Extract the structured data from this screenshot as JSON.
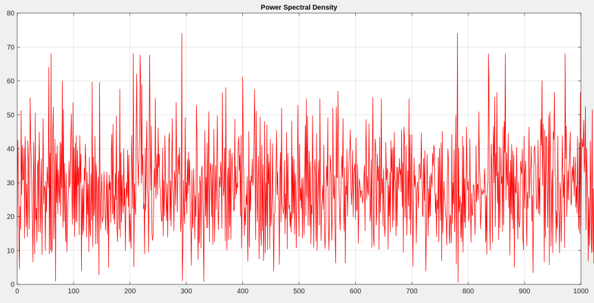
{
  "figure": {
    "background": "#f0f0f0"
  },
  "chart_data": {
    "type": "line",
    "title": "Power Spectral Density",
    "xlabel": "",
    "ylabel": "",
    "xlim": [
      0,
      1000
    ],
    "ylim": [
      0,
      80
    ],
    "grid": true,
    "x_ticks": [
      0,
      100,
      200,
      300,
      400,
      500,
      600,
      700,
      800,
      900,
      1000
    ],
    "y_ticks": [
      0,
      10,
      20,
      30,
      40,
      50,
      60,
      70,
      80
    ],
    "series": [
      {
        "color": "#ff0000",
        "x_start": 0,
        "x_step": 1,
        "values": [
          17.0,
          42.6,
          36.2,
          15.4,
          4.6,
          23.1,
          16.2,
          51.3,
          26.4,
          40.9,
          30.7,
          31.1,
          40.2,
          13.6,
          43.7,
          34.7,
          17.1,
          29.6,
          14.0,
          42.3,
          36.6,
          16.3,
          26.4,
          55.0,
          41.5,
          36.7,
          28.1,
          18.5,
          6.6,
          41.9,
          29.8,
          9.0,
          50.6,
          19.0,
          22.5,
          12.4,
          34.9,
          36.6,
          15.5,
          44.9,
          35.0,
          15.3,
          25.2,
          37.0,
          8.8,
          30.7,
          48.9,
          23.7,
          29.0,
          28.3,
          10.0,
          30.5,
          21.4,
          34.6,
          31.4,
          28.6,
          64.0,
          9.0,
          38.7,
          10.2,
          68.1,
          9.4,
          10.9,
          45.1,
          52.3,
          13.4,
          22.3,
          42.8,
          1.0,
          38.5,
          24.1,
          40.9,
          20.8,
          33.8,
          28.6,
          24.0,
          42.0,
          20.3,
          41.6,
          28.4,
          60.0,
          16.8,
          51.6,
          18.5,
          35.7,
          24.5,
          12.6,
          32.7,
          9.7,
          17.1,
          23.8,
          27.9,
          36.4,
          28.5,
          30.2,
          42.9,
          50.2,
          26.8,
          17.7,
          53.6,
          19.4,
          40.3,
          14.0,
          41.7,
          18.4,
          43.9,
          18.6,
          39.6,
          29.2,
          34.5,
          14.6,
          43.9,
          30.1,
          38.4,
          4.0,
          28.2,
          14.7,
          29.3,
          15.9,
          34.4,
          30.5,
          41.4,
          34.8,
          13.9,
          33.1,
          20.6,
          29.5,
          9.6,
          37.5,
          16.5,
          14.3,
          32.6,
          18.9,
          59.7,
          11.1,
          37.5,
          20.2,
          22.8,
          43.6,
          11.9,
          35.4,
          32.0,
          12.0,
          28.9,
          31.7,
          2.8,
          59.5,
          27.6,
          16.2,
          26.5,
          32.6,
          18.3,
          19.3,
          19.9,
          33.2,
          25.7,
          21.4,
          16.0,
          27.0,
          33.2,
          14.8,
          29.7,
          5.0,
          32.3,
          27.9,
          30.2,
          18.3,
          39.0,
          44.3,
          20.8,
          47.2,
          19.2,
          26.3,
          17.8,
          32.7,
          25.0,
          49.7,
          16.3,
          12.6,
          30.4,
          33.4,
          16.3,
          57.6,
          13.9,
          38.8,
          18.4,
          32.2,
          24.2,
          20.9,
          40.1,
          23.2,
          28.4,
          9.9,
          24.6,
          30.0,
          25.6,
          39.6,
          22.9,
          38.1,
          12.5,
          20.8,
          14.2,
          10.6,
          43.9,
          33.6,
          22.3,
          68.1,
          5.2,
          29.7,
          22.8,
          20.6,
          45.1,
          62.0,
          36.9,
          35.4,
          29.0,
          37.7,
          47.6,
          67.6,
          59.0,
          29.9,
          58.8,
          32.2,
          38.3,
          22.3,
          23.6,
          9.0,
          40.2,
          21.8,
          38.6,
          48.2,
          28.2,
          26.0,
          9.6,
          39.3,
          67.6,
          40.2,
          27.7,
          46.6,
          15.2,
          13.0,
          14.6,
          22.7,
          34.1,
          28.7,
          54.9,
          25.3,
          31.7,
          38.3,
          26.3,
          46.2,
          34.6,
          38.4,
          28.7,
          28.2,
          21.6,
          18.6,
          18.9,
          40.3,
          14.3,
          30.7,
          20.1,
          43.9,
          33.7,
          25.6,
          18.8,
          29.7,
          13.9,
          32.4,
          42.4,
          44.7,
          18.9,
          30.6,
          17.2,
          33.1,
          48.9,
          28.2,
          26.9,
          15.8,
          33.5,
          31.0,
          23.3,
          53.7,
          33.9,
          21.4,
          36.2,
          38.3,
          32.5,
          40.4,
          27.6,
          15.6,
          20.2,
          74.0,
          1.0,
          10.8,
          30.7,
          21.0,
          17.9,
          49.2,
          24.5,
          30.0,
          20.8,
          36.8,
          26.8,
          39.1,
          29.3,
          36.5,
          17.2,
          15.7,
          5.6,
          33.6,
          16.6,
          18.5,
          34.1,
          26.0,
          13.4,
          26.1,
          20.0,
          52.8,
          42.2,
          17.3,
          7.4,
          26.9,
          12.2,
          32.0,
          29.5,
          10.7,
          33.5,
          34.9,
          29.5,
          16.0,
          0.8,
          28.8,
          45.4,
          20.1,
          31.6,
          16.7,
          41.7,
          16.7,
          36.4,
          50.9,
          12.6,
          32.8,
          35.8,
          33.2,
          20.0,
          35.3,
          11.8,
          27.8,
          45.8,
          12.6,
          23.6,
          35.0,
          22.1,
          37.5,
          49.8,
          23.4,
          16.1,
          25.2,
          31.7,
          28.7,
          36.1,
          32.1,
          16.5,
          56.5,
          31.0,
          26.1,
          29.2,
          40.2,
          12.8,
          58.0,
          25.8,
          10.2,
          30.8,
          34.4,
          13.1,
          39.6,
          17.1,
          40.0,
          13.3,
          33.8,
          38.6,
          32.5,
          28.0,
          22.5,
          21.5,
          48.8,
          25.2,
          34.8,
          26.6,
          29.8,
          28.6,
          41.3,
          43.5,
          33.6,
          38.1,
          20.1,
          43.9,
          10.6,
          22.6,
          61.2,
          39.5,
          31.8,
          14.4,
          22.7,
          17.5,
          26.4,
          23.5,
          31.8,
          6.8,
          16.0,
          45.1,
          11.0,
          30.6,
          21.7,
          32.1,
          30.2,
          37.0,
          29.1,
          30.8,
          42.6,
          57.5,
          32.6,
          13.2,
          51.1,
          26.3,
          18.5,
          30.7,
          37.8,
          7.5,
          21.7,
          49.4,
          15.0,
          11.4,
          41.0,
          15.9,
          35.3,
          7.0,
          16.6,
          48.0,
          9.2,
          29.9,
          17.2,
          47.0,
          10.2,
          38.4,
          29.6,
          36.0,
          10.5,
          42.9,
          17.2,
          20.3,
          26.4,
          41.5,
          21.5,
          4.0,
          20.6,
          20.9,
          25.3,
          33.9,
          45.4,
          26.4,
          33.3,
          26.2,
          24.6,
          5.9,
          32.6,
          38.9,
          18.4,
          52.0,
          23.2,
          22.9,
          20.7,
          23.9,
          36.5,
          14.9,
          26.8,
          19.5,
          44.9,
          10.5,
          38.6,
          27.5,
          22.3,
          23.4,
          16.9,
          21.3,
          15.4,
          48.2,
          19.5,
          37.7,
          21.0,
          36.9,
          14.8,
          32.7,
          29.7,
          10.8,
          26.7,
          31.1,
          52.8,
          23.6,
          14.2,
          41.4,
          24.7,
          28.5,
          22.4,
          31.3,
          13.6,
          31.5,
          24.0,
          14.6,
          32.6,
          46.9,
          20.2,
          54.7,
          25.9,
          49.6,
          17.3,
          29.4,
          39.4,
          17.2,
          36.0,
          11.9,
          23.4,
          20.7,
          49.8,
          29.5,
          10.9,
          30.9,
          36.9,
          32.5,
          12.8,
          44.5,
          10.0,
          22.3,
          31.0,
          36.5,
          17.5,
          54.8,
          28.9,
          12.9,
          23.5,
          24.4,
          29.2,
          22.1,
          41.0,
          17.7,
          10.6,
          14.3,
          28.6,
          34.9,
          29.0,
          49.1,
          17.4,
          10.1,
          19.5,
          38.1,
          36.1,
          32.1,
          13.0,
          19.5,
          52.0,
          26.9,
          25.3,
          32.1,
          14.3,
          6.3,
          52.3,
          31.7,
          31.4,
          57.0,
          37.8,
          27.8,
          20.5,
          16.0,
          27.2,
          32.1,
          37.9,
          31.5,
          48.9,
          23.0,
          15.7,
          34.4,
          6.3,
          29.0,
          26.4,
          39.9,
          20.1,
          28.8,
          32.4,
          38.6,
          40.0,
          45.6,
          28.0,
          23.5,
          31.1,
          39.5,
          19.9,
          32.8,
          33.9,
          35.6,
          19.2,
          43.2,
          21.7,
          22.4,
          35.3,
          12.1,
          22.1,
          31.1,
          29.2,
          25.5,
          27.7,
          27.5,
          25.2,
          23.9,
          28.4,
          31.5,
          35.1,
          15.8,
          37.4,
          48.6,
          25.1,
          31.9,
          27.6,
          26.3,
          47.4,
          31.4,
          18.6,
          21.9,
          36.8,
          10.9,
          38.8,
          55.1,
          14.0,
          11.4,
          29.1,
          42.9,
          40.8,
          17.4,
          21.2,
          38.4,
          30.6,
          34.9,
          10.3,
          43.4,
          21.2,
          28.0,
          54.8,
          26.9,
          31.2,
          17.1,
          34.1,
          22.9,
          14.1,
          17.7,
          41.9,
          30.7,
          33.1,
          34.2,
          10.4,
          29.2,
          20.2,
          33.0,
          15.5,
          42.4,
          33.1,
          39.9,
          16.9,
          40.5,
          18.9,
          44.9,
          31.1,
          30.1,
          14.3,
          34.6,
          17.1,
          34.6,
          31.6,
          28.0,
          37.2,
          32.4,
          33.9,
          27.3,
          45.5,
          22.8,
          35.9,
          9.4,
          46.5,
          43.6,
          19.7,
          26.6,
          40.9,
          14.5,
          22.2,
          33.5,
          23.2,
          54.7,
          19.1,
          44.2,
          14.7,
          28.2,
          44.1,
          25.3,
          5.4,
          25.4,
          37.3,
          28.9,
          32.1,
          27.3,
          12.2,
          27.2,
          30.2,
          26.2,
          22.5,
          35.2,
          35.6,
          31.0,
          32.2,
          44.7,
          31.5,
          20.8,
          20.0,
          37.1,
          24.7,
          39.5,
          21.1,
          3.9,
          20.8,
          38.4,
          30.4,
          14.3,
          28.2,
          19.7,
          31.9,
          20.2,
          32.8,
          31.1,
          28.7,
          38.7,
          35.0,
          41.0,
          40.2,
          27.3,
          21.1,
          26.8,
          14.1,
          25.0,
          22.3,
          37.5,
          12.5,
          40.2,
          29.7,
          18.9,
          41.7,
          6.9,
          45.1,
          15.2,
          23.3,
          30.3,
          25.3,
          23.9,
          21.2,
          18.7,
          11.5,
          30.4,
          40.0,
          36.9,
          16.1,
          12.0,
          20.5,
          19.5,
          12.2,
          44.2,
          18.0,
          30.0,
          23.7,
          39.7,
          15.5,
          27.2,
          49.8,
          6.0,
          33.6,
          74.0,
          0.6,
          40.2,
          21.4,
          23.6,
          26.0,
          13.7,
          24.0,
          12.6,
          43.6,
          9.5,
          40.8,
          18.3,
          31.2,
          16.6,
          24.2,
          46.4,
          33.7,
          27.8,
          30.5,
          18.6,
          20.7,
          43.0,
          24.8,
          12.4,
          26.9,
          20.4,
          20.5,
          29.3,
          29.4,
          27.6,
          14.7,
          20.5,
          40.9,
          24.3,
          29.2,
          29.6,
          25.0,
          50.9,
          34.6,
          30.6,
          16.4,
          21.4,
          28.4,
          26.7,
          26.6,
          27.7,
          27.0,
          34.1,
          31.1,
          12.5,
          26.1,
          8.9,
          27.7,
          30.1,
          68.0,
          56.6,
          21.1,
          10.1,
          29.1,
          41.4,
          32.4,
          12.4,
          37.2,
          46.6,
          30.0,
          55.2,
          17.0,
          38.7,
          32.0,
          56.6,
          24.0,
          33.1,
          13.2,
          40.6,
          16.7,
          27.3,
          40.2,
          29.7,
          31.8,
          15.6,
          46.4,
          17.6,
          48.0,
          38.9,
          68.0,
          24.8,
          38.8,
          31.6,
          29.2,
          44.5,
          22.6,
          33.2,
          8.6,
          36.6,
          20.9,
          41.3,
          19.2,
          39.4,
          16.4,
          38.1,
          5.1,
          31.8,
          27.4,
          26.8,
          40.5,
          24.4,
          13.4,
          30.1,
          18.3,
          16.7,
          21.1,
          36.3,
          34.0,
          32.6,
          39.8,
          14.3,
          10.2,
          43.7,
          22.5,
          33.1,
          36.4,
          22.3,
          11.4,
          27.1,
          22.4,
          34.5,
          46.4,
          25.4,
          33.8,
          34.4,
          40.8,
          18.6,
          26.2,
          3.5,
          19.8,
          39.4,
          41.0,
          35.6,
          35.5,
          22.6,
          22.1,
          27.1,
          42.6,
          21.0,
          31.4,
          20.4,
          38.4,
          48.7,
          41.0,
          60.1,
          29.1,
          47.2,
          32.4,
          6.6,
          45.4,
          13.9,
          43.7,
          43.3,
          30.6,
          16.8,
          35.9,
          49.8,
          5.8,
          50.9,
          37.4,
          11.3,
          26.1,
          33.7,
          9.3,
          45.0,
          42.8,
          56.6,
          33.7,
          31.3,
          12.3,
          21.6,
          16.6,
          43.8,
          22.7,
          21.3,
          9.3,
          30.0,
          27.4,
          12.6,
          20.9,
          43.9,
          33.0,
          25.6,
          32.3,
          10.8,
          68.1,
          37.0,
          46.7,
          20.0,
          27.9,
          33.6,
          24.9,
          34.9,
          38.3,
          45.0,
          24.8,
          23.3,
          31.9,
          34.7,
          30.2,
          37.7,
          25.9,
          31.7,
          37.5,
          22.8,
          28.9,
          21.0,
          43.7,
          25.0,
          16.1,
          41.8,
          15.0,
          56.6,
          17.0,
          38.9,
          43.0,
          40.6,
          40.8,
          48.4,
          33.1,
          36.7,
          52.4,
          16.1,
          40.3,
          32.3,
          25.3,
          6.9,
          25.5,
          11.5,
          23.9,
          42.2,
          15.3,
          9.4,
          51.5,
          9.6,
          28.2,
          6.2,
          14.8,
          51.1,
          19.9,
          40.0,
          9.3,
          18.7,
          45.8,
          4.5,
          33.9,
          26.3
        ]
      }
    ]
  }
}
